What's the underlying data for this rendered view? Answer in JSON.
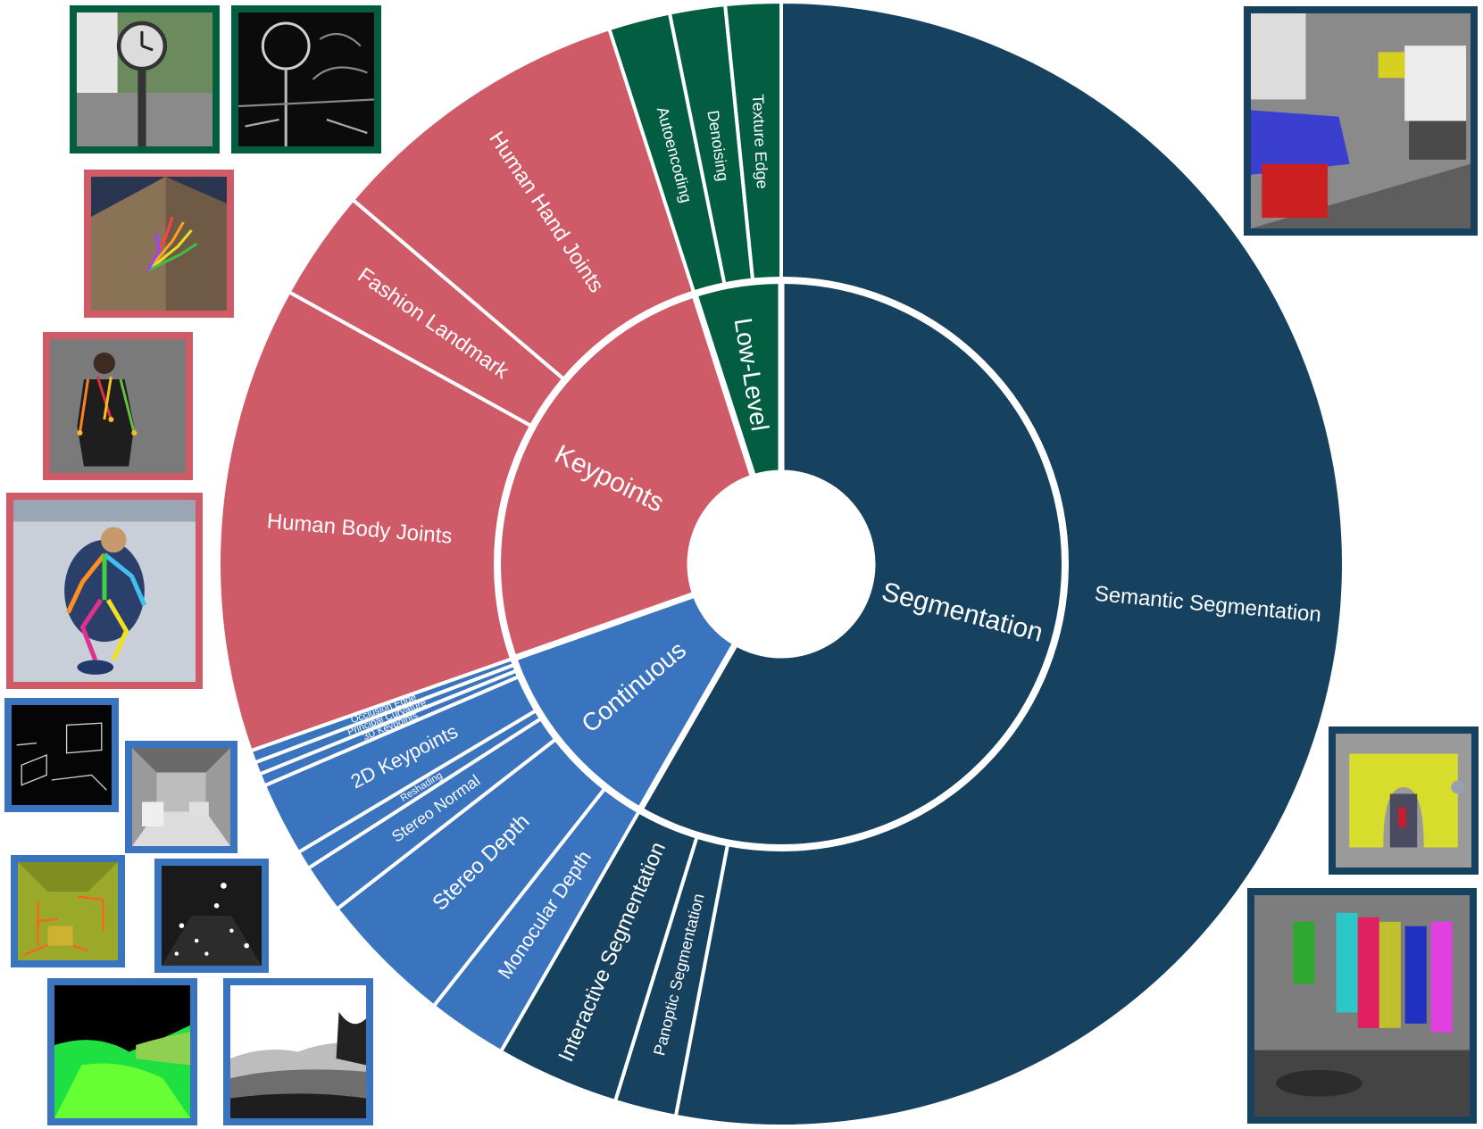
{
  "colors": {
    "segmentation": "#17425f",
    "low_level": "#035d41",
    "keypoints": "#cf5b69",
    "continuous": "#3a73be",
    "separator": "#ffffff"
  },
  "chart_data": {
    "type": "sunburst",
    "title": "",
    "start_angle_deg": 0,
    "direction": "clockwise",
    "categories": [
      {
        "name": "Segmentation",
        "color_key": "segmentation",
        "children": [
          {
            "name": "Semantic Segmentation",
            "value": 150
          },
          {
            "name": "Panoptic Segmentation",
            "value": 5
          },
          {
            "name": "Interactive Segmentation",
            "value": 10
          }
        ]
      },
      {
        "name": "Continuous",
        "color_key": "continuous",
        "children": [
          {
            "name": "Monocular Depth",
            "value": 6.5
          },
          {
            "name": "Stereo Depth",
            "value": 11
          },
          {
            "name": "Stereo Normal",
            "value": 4
          },
          {
            "name": "Reshading",
            "value": 1.5
          },
          {
            "name": "2D Keypoints",
            "value": 6
          },
          {
            "name": "3D Keypoints",
            "value": 1
          },
          {
            "name": "Principal Curvature",
            "value": 1
          },
          {
            "name": "Occlusion Edge",
            "value": 1
          }
        ]
      },
      {
        "name": "Keypoints",
        "color_key": "keypoints",
        "children": [
          {
            "name": "Human Body Joints",
            "value": 38
          },
          {
            "name": "Fashion Landmark",
            "value": 9
          },
          {
            "name": "Human Hand Joints",
            "value": 25
          }
        ]
      },
      {
        "name": "Low-Level",
        "color_key": "low_level",
        "children": [
          {
            "name": "Autoencoding",
            "value": 5
          },
          {
            "name": "Denoising",
            "value": 4.5
          },
          {
            "name": "Texture Edge",
            "value": 4.5
          }
        ]
      }
    ]
  },
  "thumbnails": [
    {
      "name": "thumb-clock-photo",
      "color_key": "low_level",
      "kind": "clock"
    },
    {
      "name": "thumb-clock-edges",
      "color_key": "low_level",
      "kind": "edges"
    },
    {
      "name": "thumb-hand-joints",
      "color_key": "keypoints",
      "kind": "hand"
    },
    {
      "name": "thumb-fashion-landmark",
      "color_key": "keypoints",
      "kind": "fashion"
    },
    {
      "name": "thumb-body-joints",
      "color_key": "keypoints",
      "kind": "body"
    },
    {
      "name": "thumb-occlusion-edge",
      "color_key": "continuous",
      "kind": "dark-edges"
    },
    {
      "name": "thumb-reshading",
      "color_key": "continuous",
      "kind": "gray-room"
    },
    {
      "name": "thumb-principal-curvature",
      "color_key": "continuous",
      "kind": "curvature"
    },
    {
      "name": "thumb-keypoints-2d",
      "color_key": "continuous",
      "kind": "dots"
    },
    {
      "name": "thumb-stereo-normal",
      "color_key": "continuous",
      "kind": "normal"
    },
    {
      "name": "thumb-stereo-depth",
      "color_key": "continuous",
      "kind": "depth"
    },
    {
      "name": "thumb-semantic-room",
      "color_key": "segmentation",
      "kind": "room"
    },
    {
      "name": "thumb-interactive-arch",
      "color_key": "segmentation",
      "kind": "arch"
    },
    {
      "name": "thumb-panoptic-people",
      "color_key": "segmentation",
      "kind": "people"
    }
  ]
}
